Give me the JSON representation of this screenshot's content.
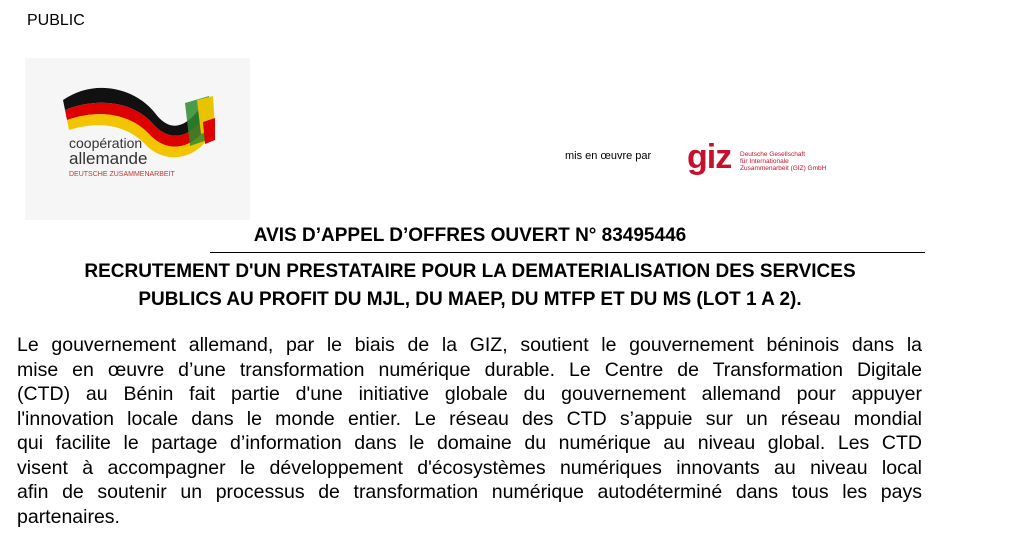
{
  "header": {
    "classification": "PUBLIC",
    "logo": {
      "line1": "coopération",
      "line2": "allemande",
      "line3": "DEUTSCHE ZUSAMMENARBEIT"
    },
    "implemented_by": "mis en œuvre par",
    "giz": {
      "name": "giz",
      "line1": "Deutsche Gesellschaft",
      "line2": "für Internationale",
      "line3": "Zusammenarbeit (GIZ) GmbH"
    }
  },
  "document": {
    "title": "AVIS D’APPEL D’OFFRES OUVERT N° 83495446",
    "subtitle": [
      "RECRUTEMENT D'UN PRESTATAIRE POUR LA DEMATERIALISATION DES SERVICES",
      "PUBLICS AU PROFIT DU MJL, DU MAEP, DU MTFP ET DU MS (LOT 1 A 2)."
    ],
    "paragraph": [
      "Le gouvernement allemand, par le biais de la GIZ, soutient le gouvernement béninois dans la",
      "mise en œuvre d’une transformation numérique durable. Le Centre de Transformation Digitale",
      "(CTD) au Bénin fait partie d'une initiative globale du gouvernement allemand pour appuyer",
      "l'innovation locale dans le monde entier. Le réseau des CTD s’appuie sur un réseau mondial",
      "qui facilite le partage d’information dans le domaine du numérique au niveau global. Les CTD",
      "visent à accompagner le développement d'écosystèmes numériques innovants au niveau local",
      "afin de soutenir un processus de transformation numérique autodéterminé dans tous les pays",
      "partenaires."
    ]
  }
}
